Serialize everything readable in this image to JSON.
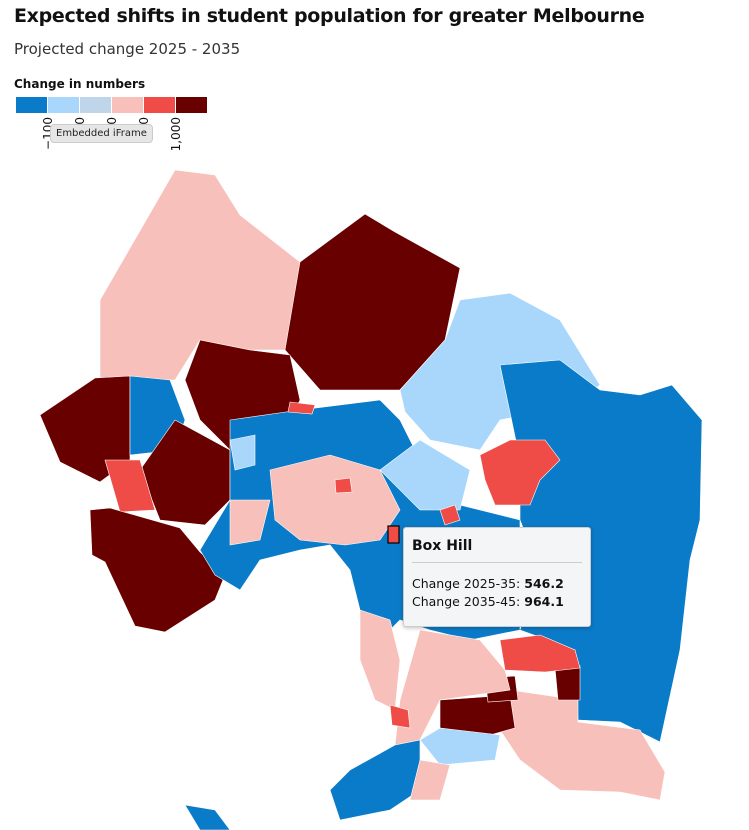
{
  "header": {
    "title": "Expected shifts in student population for greater Melbourne",
    "subtitle": "Projected change 2025 - 2035"
  },
  "legend": {
    "title": "Change in numbers",
    "colors": [
      "#0a7bc8",
      "#a9d7fb",
      "#bfd5ea",
      "#f8c0ba",
      "#ef4c47",
      "#690000"
    ],
    "labels": [
      "−100",
      "0",
      "0",
      "0",
      "1,000"
    ]
  },
  "embed_tooltip": "Embedded iFrame",
  "tooltip": {
    "name": "Box Hill",
    "rows": [
      {
        "label": "Change 2025-35:",
        "value": "546.2"
      },
      {
        "label": "Change 2035-45:",
        "value": "964.1"
      }
    ]
  }
}
